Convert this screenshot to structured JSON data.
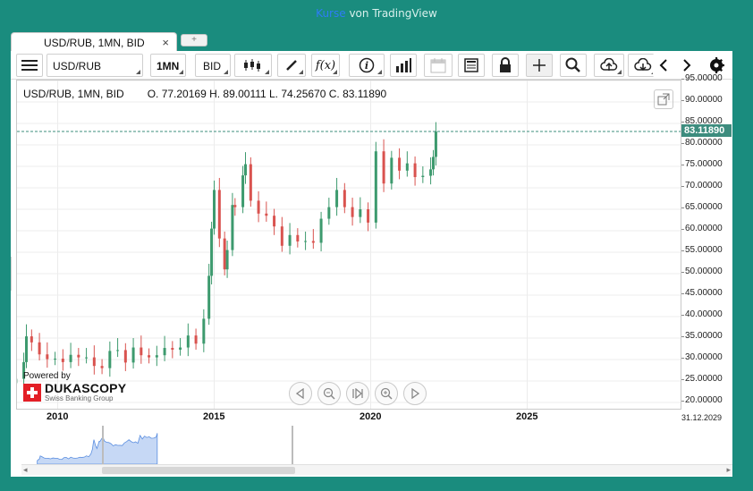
{
  "caption": {
    "link": "Kurse",
    "rest": "von TradingView"
  },
  "tab": {
    "label": "USD/RUB, 1MN, BID",
    "close": "×",
    "new_tab": "+"
  },
  "toolbar": {
    "menu_icon": "hamburger-icon",
    "symbol": "USD/RUB",
    "interval": "1MN",
    "price_type": "BID",
    "buttons": [
      "candles-icon",
      "pen-icon",
      "fx-icon",
      "info-icon",
      "bars-icon",
      "calendar-icon",
      "table-icon",
      "lock-icon",
      "crosshair-icon",
      "zoom-icon",
      "upload-icon",
      "download-icon",
      "arrow-left-icon",
      "arrow-right-icon",
      "gear-icon"
    ],
    "fx_label": "f(x)",
    "info_label": "i"
  },
  "legend": {
    "symbol": "USD/RUB, 1MN, BID",
    "ohlc": "O. 77.20169 H. 89.00111 L. 74.25670 C. 83.11890"
  },
  "last_price": "83.11890",
  "y_ticks": [
    "95.00000",
    "90.00000",
    "85.00000",
    "80.00000",
    "75.00000",
    "70.00000",
    "65.00000",
    "60.00000",
    "55.00000",
    "50.00000",
    "45.00000",
    "40.00000",
    "35.00000",
    "30.00000",
    "25.00000",
    "20.00000"
  ],
  "x_ticks": [
    "2010",
    "2015",
    "2020",
    "2025"
  ],
  "x_end_label": "31.12.2029",
  "powered": {
    "line1": "Powered by",
    "brand": "DUKASCOPY",
    "sub": "Swiss Banking Group"
  },
  "nav_icons": [
    "prev-icon",
    "zoom-out-icon",
    "reset-icon",
    "zoom-in-icon",
    "next-icon"
  ],
  "colors": {
    "up": "#3d9a6e",
    "down": "#d9534f",
    "accent": "#1a8c7e",
    "price_tag": "#3d8c7e"
  },
  "chart_data": {
    "type": "candlestick",
    "xlabel": "",
    "ylabel": "",
    "ylim": [
      20,
      95
    ],
    "x_range": [
      "2008-09",
      "2029-12"
    ],
    "last_close": 83.1189,
    "series": [
      {
        "values": [
          {
            "date": "2008-09",
            "close": 25.5
          },
          {
            "date": "2008-12",
            "close": 29.4
          },
          {
            "date": "2009-01",
            "close": 35.4
          },
          {
            "date": "2009-03",
            "close": 34.0
          },
          {
            "date": "2009-06",
            "close": 31.2
          },
          {
            "date": "2009-09",
            "close": 30.1
          },
          {
            "date": "2009-12",
            "close": 30.2
          },
          {
            "date": "2010-03",
            "close": 29.4
          },
          {
            "date": "2010-06",
            "close": 31.1
          },
          {
            "date": "2010-09",
            "close": 30.5
          },
          {
            "date": "2010-12",
            "close": 30.5
          },
          {
            "date": "2011-03",
            "close": 28.5
          },
          {
            "date": "2011-06",
            "close": 28.0
          },
          {
            "date": "2011-09",
            "close": 32.0
          },
          {
            "date": "2011-12",
            "close": 32.2
          },
          {
            "date": "2012-03",
            "close": 29.3
          },
          {
            "date": "2012-06",
            "close": 32.8
          },
          {
            "date": "2012-09",
            "close": 31.0
          },
          {
            "date": "2012-12",
            "close": 30.5
          },
          {
            "date": "2013-03",
            "close": 31.0
          },
          {
            "date": "2013-06",
            "close": 32.7
          },
          {
            "date": "2013-09",
            "close": 32.3
          },
          {
            "date": "2013-12",
            "close": 32.8
          },
          {
            "date": "2014-03",
            "close": 35.6
          },
          {
            "date": "2014-06",
            "close": 33.7
          },
          {
            "date": "2014-09",
            "close": 39.5
          },
          {
            "date": "2014-11",
            "close": 49.5
          },
          {
            "date": "2014-12",
            "close": 60.5
          },
          {
            "date": "2015-01",
            "close": 69.5
          },
          {
            "date": "2015-03",
            "close": 58.2
          },
          {
            "date": "2015-05",
            "close": 51.0
          },
          {
            "date": "2015-06",
            "close": 55.5
          },
          {
            "date": "2015-08",
            "close": 66.0
          },
          {
            "date": "2015-09",
            "close": 65.5
          },
          {
            "date": "2015-12",
            "close": 72.9
          },
          {
            "date": "2016-01",
            "close": 75.5
          },
          {
            "date": "2016-03",
            "close": 67.0
          },
          {
            "date": "2016-06",
            "close": 64.0
          },
          {
            "date": "2016-09",
            "close": 63.5
          },
          {
            "date": "2016-12",
            "close": 61.0
          },
          {
            "date": "2017-03",
            "close": 56.5
          },
          {
            "date": "2017-06",
            "close": 59.0
          },
          {
            "date": "2017-09",
            "close": 57.5
          },
          {
            "date": "2017-12",
            "close": 57.6
          },
          {
            "date": "2018-03",
            "close": 57.2
          },
          {
            "date": "2018-06",
            "close": 62.8
          },
          {
            "date": "2018-09",
            "close": 65.5
          },
          {
            "date": "2018-12",
            "close": 69.5
          },
          {
            "date": "2019-03",
            "close": 65.5
          },
          {
            "date": "2019-06",
            "close": 63.2
          },
          {
            "date": "2019-09",
            "close": 65.0
          },
          {
            "date": "2019-12",
            "close": 61.9
          },
          {
            "date": "2020-03",
            "close": 78.5
          },
          {
            "date": "2020-06",
            "close": 71.0
          },
          {
            "date": "2020-09",
            "close": 77.0
          },
          {
            "date": "2020-12",
            "close": 74.0
          },
          {
            "date": "2021-03",
            "close": 75.7
          },
          {
            "date": "2021-06",
            "close": 72.5
          },
          {
            "date": "2021-09",
            "close": 72.8
          },
          {
            "date": "2021-12",
            "close": 74.3
          },
          {
            "date": "2022-01",
            "close": 77.2
          },
          {
            "date": "2022-02",
            "close": 83.1
          }
        ]
      }
    ]
  }
}
